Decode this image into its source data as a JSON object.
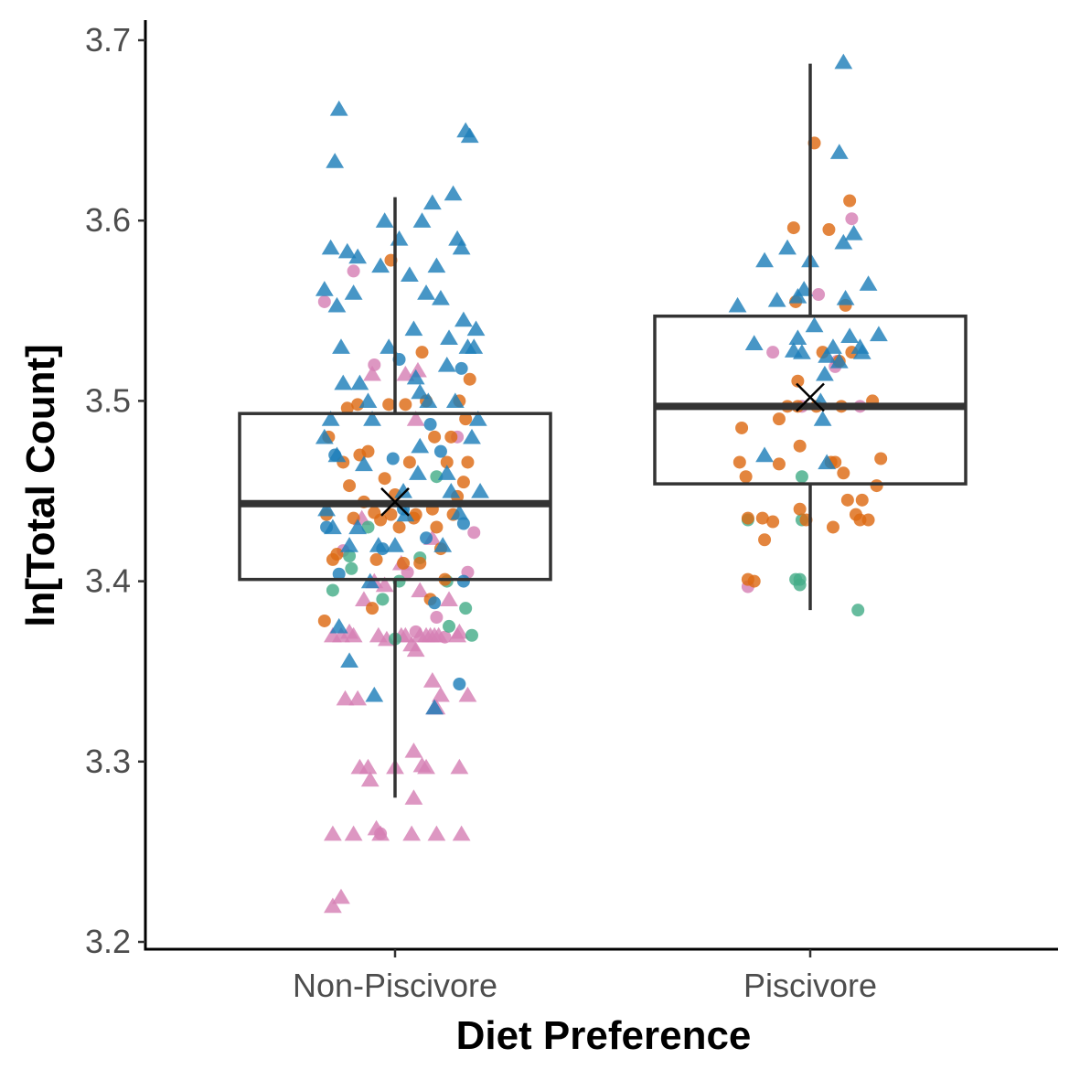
{
  "chart_data": {
    "type": "scatter",
    "subtype": "boxplot-with-jittered-points",
    "xlabel": "Diet Preference",
    "ylabel": "ln[Total Count]",
    "categories": [
      "Non-Piscivore",
      "Piscivore"
    ],
    "ylim": [
      3.2,
      3.7
    ],
    "yticks": [
      "3.2",
      "3.3",
      "3.4",
      "3.5",
      "3.6",
      "3.7"
    ],
    "grid": false,
    "legend": "none",
    "boxes": [
      {
        "category": "Non-Piscivore",
        "whisker_low": 3.28,
        "q1": 3.401,
        "median": 3.443,
        "q3": 3.493,
        "whisker_high": 3.613,
        "mean": 3.444
      },
      {
        "category": "Piscivore",
        "whisker_low": 3.384,
        "q1": 3.454,
        "median": 3.497,
        "q3": 3.547,
        "whisker_high": 3.687,
        "mean": 3.502
      }
    ],
    "colors": {
      "blue": "#1f7fba",
      "orange": "#dd6a14",
      "green": "#45ad89",
      "pink": "#d580b4",
      "box": "#333333"
    },
    "points": {
      "Non-Piscivore": {
        "blue_triangle": [
          [
            -0.34,
            3.562
          ],
          [
            -0.31,
            3.585
          ],
          [
            -0.29,
            3.633
          ],
          [
            -0.27,
            3.662
          ],
          [
            -0.28,
            3.553
          ],
          [
            -0.26,
            3.53
          ],
          [
            -0.25,
            3.51
          ],
          [
            -0.31,
            3.49
          ],
          [
            -0.34,
            3.48
          ],
          [
            -0.28,
            3.47
          ],
          [
            -0.33,
            3.44
          ],
          [
            -0.3,
            3.43
          ],
          [
            -0.27,
            3.375
          ],
          [
            -0.23,
            3.583
          ],
          [
            -0.2,
            3.56
          ],
          [
            -0.18,
            3.58
          ],
          [
            -0.22,
            3.42
          ],
          [
            -0.22,
            3.356
          ],
          [
            -0.17,
            3.51
          ],
          [
            -0.13,
            3.5
          ],
          [
            -0.11,
            3.49
          ],
          [
            -0.07,
            3.575
          ],
          [
            -0.05,
            3.6
          ],
          [
            -0.03,
            3.53
          ],
          [
            -0.08,
            3.42
          ],
          [
            -0.12,
            3.4
          ],
          [
            -0.18,
            3.43
          ],
          [
            -0.1,
            3.337
          ],
          [
            0.02,
            3.59
          ],
          [
            0.04,
            3.45
          ],
          [
            0.07,
            3.57
          ],
          [
            0.09,
            3.54
          ],
          [
            0.13,
            3.6
          ],
          [
            0.15,
            3.56
          ],
          [
            0.12,
            3.475
          ],
          [
            0.11,
            3.46
          ],
          [
            0.18,
            3.61
          ],
          [
            0.16,
            3.5
          ],
          [
            0.2,
            3.575
          ],
          [
            0.22,
            3.557
          ],
          [
            0.25,
            3.52
          ],
          [
            0.26,
            3.535
          ],
          [
            0.19,
            3.33
          ],
          [
            0.28,
            3.615
          ],
          [
            0.27,
            3.45
          ],
          [
            0.3,
            3.59
          ],
          [
            0.32,
            3.585
          ],
          [
            0.33,
            3.545
          ],
          [
            0.35,
            3.53
          ],
          [
            0.29,
            3.5
          ],
          [
            0.23,
            3.42
          ],
          [
            0.38,
            3.53
          ],
          [
            0.4,
            3.49
          ],
          [
            0.37,
            3.48
          ],
          [
            0.41,
            3.45
          ],
          [
            0.34,
            3.65
          ],
          [
            0.36,
            3.647
          ],
          [
            0.25,
            3.46
          ],
          [
            0.1,
            3.513
          ],
          [
            -0.15,
            3.465
          ],
          [
            0.0,
            3.42
          ],
          [
            0.05,
            3.437
          ],
          [
            0.31,
            3.438
          ],
          [
            0.39,
            3.54
          ],
          [
            0.12,
            3.505
          ]
        ],
        "blue_circle": [
          [
            -0.33,
            3.43
          ],
          [
            -0.29,
            3.47
          ],
          [
            -0.27,
            3.404
          ],
          [
            0.02,
            3.523
          ],
          [
            -0.06,
            3.418
          ],
          [
            -0.01,
            3.468
          ],
          [
            0.17,
            3.487
          ],
          [
            0.15,
            3.424
          ],
          [
            0.19,
            3.388
          ],
          [
            0.22,
            3.472
          ],
          [
            0.31,
            3.343
          ],
          [
            0.32,
            3.518
          ],
          [
            0.33,
            3.4
          ],
          [
            0.33,
            3.432
          ],
          [
            0.04,
            3.44
          ]
        ],
        "orange_circle": [
          [
            -0.33,
            3.437
          ],
          [
            -0.32,
            3.48
          ],
          [
            -0.34,
            3.378
          ],
          [
            -0.3,
            3.412
          ],
          [
            -0.28,
            3.415
          ],
          [
            -0.25,
            3.466
          ],
          [
            -0.23,
            3.496
          ],
          [
            -0.22,
            3.453
          ],
          [
            -0.2,
            3.435
          ],
          [
            -0.18,
            3.498
          ],
          [
            -0.17,
            3.47
          ],
          [
            -0.15,
            3.444
          ],
          [
            -0.13,
            3.472
          ],
          [
            -0.1,
            3.438
          ],
          [
            -0.09,
            3.412
          ],
          [
            -0.11,
            3.385
          ],
          [
            -0.07,
            3.434
          ],
          [
            -0.05,
            3.457
          ],
          [
            -0.03,
            3.498
          ],
          [
            -0.02,
            3.437
          ],
          [
            0.0,
            3.448
          ],
          [
            0.02,
            3.43
          ],
          [
            0.04,
            3.41
          ],
          [
            0.05,
            3.498
          ],
          [
            0.07,
            3.466
          ],
          [
            0.09,
            3.435
          ],
          [
            0.1,
            3.437
          ],
          [
            0.12,
            3.41
          ],
          [
            0.13,
            3.527
          ],
          [
            0.15,
            3.5
          ],
          [
            0.17,
            3.39
          ],
          [
            0.19,
            3.48
          ],
          [
            0.2,
            3.43
          ],
          [
            0.22,
            3.418
          ],
          [
            0.24,
            3.401
          ],
          [
            0.25,
            3.466
          ],
          [
            0.27,
            3.48
          ],
          [
            0.28,
            3.437
          ],
          [
            0.3,
            3.447
          ],
          [
            0.31,
            3.5
          ],
          [
            0.33,
            3.455
          ],
          [
            0.35,
            3.466
          ],
          [
            0.34,
            3.49
          ],
          [
            0.36,
            3.512
          ],
          [
            -0.02,
            3.578
          ],
          [
            0.18,
            3.44
          ]
        ],
        "green_circle": [
          [
            -0.3,
            3.395
          ],
          [
            -0.22,
            3.414
          ],
          [
            -0.21,
            3.407
          ],
          [
            -0.13,
            3.43
          ],
          [
            -0.06,
            3.39
          ],
          [
            0.12,
            3.413
          ],
          [
            0.2,
            3.458
          ],
          [
            0.25,
            3.4
          ],
          [
            0.26,
            3.375
          ],
          [
            0.34,
            3.385
          ],
          [
            0.37,
            3.37
          ],
          [
            0.02,
            3.4
          ],
          [
            0.0,
            3.368
          ]
        ],
        "pink_circle": [
          [
            -0.34,
            3.555
          ],
          [
            -0.2,
            3.572
          ],
          [
            -0.1,
            3.52
          ],
          [
            -0.07,
            3.26
          ],
          [
            0.06,
            3.405
          ],
          [
            0.1,
            3.372
          ],
          [
            0.24,
            3.369
          ],
          [
            0.38,
            3.427
          ],
          [
            0.3,
            3.48
          ],
          [
            0.35,
            3.405
          ],
          [
            0.2,
            3.38
          ],
          [
            -0.25,
            3.417
          ]
        ],
        "pink_triangle": [
          [
            -0.3,
            3.22
          ],
          [
            -0.26,
            3.225
          ],
          [
            -0.3,
            3.26
          ],
          [
            -0.2,
            3.26
          ],
          [
            -0.18,
            3.335
          ],
          [
            -0.24,
            3.335
          ],
          [
            -0.17,
            3.297
          ],
          [
            -0.13,
            3.297
          ],
          [
            -0.12,
            3.29
          ],
          [
            -0.09,
            3.263
          ],
          [
            -0.07,
            3.26
          ],
          [
            0.0,
            3.297
          ],
          [
            0.08,
            3.26
          ],
          [
            0.09,
            3.306
          ],
          [
            0.09,
            3.28
          ],
          [
            0.13,
            3.298
          ],
          [
            0.15,
            3.297
          ],
          [
            0.2,
            3.26
          ],
          [
            0.19,
            3.33
          ],
          [
            0.2,
            3.33
          ],
          [
            0.22,
            3.337
          ],
          [
            0.32,
            3.26
          ],
          [
            0.31,
            3.297
          ],
          [
            0.35,
            3.337
          ],
          [
            0.18,
            3.345
          ],
          [
            0.12,
            3.37
          ],
          [
            0.15,
            3.37
          ],
          [
            0.17,
            3.37
          ],
          [
            0.19,
            3.37
          ],
          [
            0.21,
            3.37
          ],
          [
            -0.3,
            3.37
          ],
          [
            -0.26,
            3.37
          ],
          [
            -0.22,
            3.372
          ],
          [
            -0.2,
            3.37
          ],
          [
            -0.08,
            3.37
          ],
          [
            -0.04,
            3.368
          ],
          [
            0.03,
            3.37
          ],
          [
            0.05,
            3.37
          ],
          [
            0.08,
            3.365
          ],
          [
            0.1,
            3.362
          ],
          [
            -0.15,
            3.39
          ],
          [
            -0.1,
            3.4
          ],
          [
            -0.05,
            3.398
          ],
          [
            0.12,
            3.395
          ],
          [
            0.26,
            3.39
          ],
          [
            0.3,
            3.37
          ],
          [
            0.31,
            3.372
          ],
          [
            -0.16,
            3.435
          ],
          [
            0.03,
            3.41
          ],
          [
            0.18,
            3.424
          ],
          [
            0.1,
            3.49
          ],
          [
            0.11,
            3.517
          ],
          [
            -0.11,
            3.515
          ],
          [
            0.05,
            3.515
          ]
        ]
      },
      "Piscivore": {
        "blue_triangle": [
          [
            -0.35,
            3.553
          ],
          [
            -0.27,
            3.532
          ],
          [
            -0.22,
            3.47
          ],
          [
            -0.22,
            3.578
          ],
          [
            -0.16,
            3.556
          ],
          [
            -0.11,
            3.585
          ],
          [
            -0.08,
            3.528
          ],
          [
            -0.06,
            3.558
          ],
          [
            -0.03,
            3.562
          ],
          [
            -0.06,
            3.535
          ],
          [
            -0.04,
            3.527
          ],
          [
            0.0,
            3.578
          ],
          [
            0.02,
            3.542
          ],
          [
            0.05,
            3.5
          ],
          [
            0.06,
            3.49
          ],
          [
            0.07,
            3.515
          ],
          [
            0.08,
            3.525
          ],
          [
            0.11,
            3.53
          ],
          [
            0.14,
            3.522
          ],
          [
            0.16,
            3.588
          ],
          [
            0.14,
            3.638
          ],
          [
            0.16,
            3.688
          ],
          [
            0.17,
            3.557
          ],
          [
            0.19,
            3.536
          ],
          [
            0.21,
            3.593
          ],
          [
            0.24,
            3.53
          ],
          [
            0.25,
            3.527
          ],
          [
            0.28,
            3.565
          ],
          [
            0.33,
            3.537
          ],
          [
            0.08,
            3.466
          ]
        ],
        "orange_circle": [
          [
            -0.34,
            3.466
          ],
          [
            -0.33,
            3.485
          ],
          [
            -0.31,
            3.458
          ],
          [
            -0.3,
            3.435
          ],
          [
            -0.3,
            3.401
          ],
          [
            -0.27,
            3.4
          ],
          [
            -0.23,
            3.435
          ],
          [
            -0.22,
            3.423
          ],
          [
            -0.18,
            3.433
          ],
          [
            -0.15,
            3.49
          ],
          [
            -0.15,
            3.465
          ],
          [
            -0.11,
            3.497
          ],
          [
            -0.08,
            3.596
          ],
          [
            -0.07,
            3.555
          ],
          [
            -0.06,
            3.511
          ],
          [
            -0.06,
            3.497
          ],
          [
            -0.05,
            3.475
          ],
          [
            -0.05,
            3.44
          ],
          [
            -0.02,
            3.434
          ],
          [
            0.02,
            3.643
          ],
          [
            0.03,
            3.497
          ],
          [
            0.06,
            3.527
          ],
          [
            0.09,
            3.595
          ],
          [
            0.1,
            3.466
          ],
          [
            0.11,
            3.43
          ],
          [
            0.12,
            3.466
          ],
          [
            0.14,
            3.522
          ],
          [
            0.15,
            3.497
          ],
          [
            0.16,
            3.46
          ],
          [
            0.17,
            3.553
          ],
          [
            0.19,
            3.611
          ],
          [
            0.2,
            3.527
          ],
          [
            0.22,
            3.437
          ],
          [
            0.24,
            3.434
          ],
          [
            0.25,
            3.445
          ],
          [
            0.28,
            3.434
          ],
          [
            0.3,
            3.5
          ],
          [
            0.32,
            3.453
          ],
          [
            0.34,
            3.468
          ],
          [
            0.18,
            3.445
          ]
        ],
        "pink_circle": [
          [
            -0.3,
            3.397
          ],
          [
            -0.18,
            3.527
          ],
          [
            0.04,
            3.559
          ],
          [
            0.12,
            3.519
          ],
          [
            0.13,
            3.522
          ],
          [
            0.2,
            3.601
          ],
          [
            0.24,
            3.497
          ],
          [
            -0.04,
            3.497
          ]
        ],
        "green_circle": [
          [
            -0.3,
            3.434
          ],
          [
            -0.07,
            3.401
          ],
          [
            -0.05,
            3.401
          ],
          [
            -0.05,
            3.398
          ],
          [
            -0.04,
            3.458
          ],
          [
            -0.04,
            3.434
          ],
          [
            0.23,
            3.384
          ]
        ]
      }
    }
  }
}
